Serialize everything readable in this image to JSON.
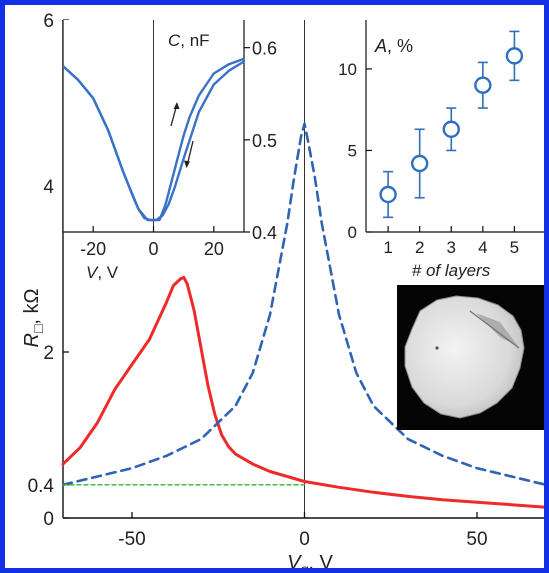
{
  "colors": {
    "frame": "#1430e6",
    "red_curve": "#ee2a2a",
    "blue_curve": "#2f63b6",
    "green_line": "#34b234",
    "inset_blue": "#3a73c6",
    "marker": "#2f6fc0"
  },
  "chart_data": [
    {
      "id": "main",
      "type": "line",
      "xlabel": "V_g, V",
      "xlabel_main": "V",
      "xlabel_sub": "g",
      "xlabel_unit": ", V",
      "ylabel": "R□, kΩ",
      "ylabel_main": "R",
      "ylabel_sub": "□",
      "ylabel_unit": ", kΩ",
      "xlim": [
        -70,
        70
      ],
      "ylim": [
        0,
        6
      ],
      "x_ticks": [
        -50,
        0,
        50
      ],
      "x_tick_labels": [
        "-50",
        "0",
        "50"
      ],
      "y_ticks": [
        0,
        0.4,
        2,
        4,
        6
      ],
      "y_tick_labels": [
        "0",
        "0.4",
        "2",
        "4",
        "6"
      ],
      "vline_x": 0,
      "series": [
        {
          "key": "red",
          "style": "solid",
          "x": [
            -70,
            -65,
            -60,
            -55,
            -50,
            -45,
            -40,
            -38,
            -36,
            -35,
            -34,
            -32,
            -30,
            -28,
            -26,
            -24,
            -22,
            -20,
            -15,
            -10,
            -5,
            0,
            10,
            20,
            30,
            40,
            50,
            60,
            70
          ],
          "y": [
            0.65,
            0.85,
            1.15,
            1.55,
            1.85,
            2.15,
            2.6,
            2.8,
            2.88,
            2.9,
            2.82,
            2.5,
            2.05,
            1.6,
            1.25,
            1.0,
            0.86,
            0.77,
            0.65,
            0.56,
            0.5,
            0.44,
            0.37,
            0.31,
            0.26,
            0.22,
            0.19,
            0.16,
            0.13
          ]
        },
        {
          "key": "blue",
          "style": "dashed",
          "x": [
            -70,
            -60,
            -50,
            -40,
            -30,
            -20,
            -15,
            -10,
            -5,
            -3,
            -1,
            0,
            1,
            3,
            5,
            10,
            15,
            20,
            30,
            40,
            50,
            60,
            70
          ],
          "y": [
            0.4,
            0.5,
            0.6,
            0.75,
            0.95,
            1.35,
            1.75,
            2.45,
            3.55,
            4.1,
            4.6,
            4.75,
            4.55,
            4.1,
            3.55,
            2.45,
            1.75,
            1.35,
            0.95,
            0.75,
            0.6,
            0.5,
            0.4
          ]
        },
        {
          "key": "green",
          "style": "dashed",
          "x": [
            -70,
            0
          ],
          "y": [
            0.4,
            0.4
          ]
        }
      ]
    },
    {
      "id": "inset_cv",
      "type": "line",
      "ylabel": "C, nF",
      "ylabel_main": "C",
      "ylabel_unit": ", nF",
      "xlabel": "V, V",
      "xlabel_main": "V",
      "xlabel_unit": ", V",
      "xlim": [
        -30,
        30
      ],
      "ylim": [
        0.4,
        0.63
      ],
      "x_ticks": [
        -20,
        0,
        20
      ],
      "x_tick_labels": [
        "-20",
        "0",
        "20"
      ],
      "y_ticks": [
        0.4,
        0.5,
        0.6
      ],
      "y_tick_labels": [
        "0.4",
        "0.5",
        "0.6"
      ],
      "series": [
        {
          "key": "sweep_down",
          "x": [
            -30,
            -25,
            -20,
            -15,
            -10,
            -7,
            -5,
            -3,
            -1,
            0,
            1,
            3,
            5,
            7,
            10,
            15,
            20,
            25,
            30
          ],
          "y": [
            0.58,
            0.565,
            0.545,
            0.51,
            0.465,
            0.44,
            0.425,
            0.415,
            0.413,
            0.413,
            0.413,
            0.418,
            0.43,
            0.448,
            0.48,
            0.53,
            0.56,
            0.575,
            0.585
          ]
        },
        {
          "key": "sweep_up",
          "x": [
            -30,
            -25,
            -20,
            -15,
            -10,
            -5,
            -2,
            0,
            2,
            4,
            6,
            8,
            10,
            12,
            15,
            20,
            25,
            30
          ],
          "y": [
            0.58,
            0.565,
            0.545,
            0.51,
            0.465,
            0.425,
            0.413,
            0.413,
            0.413,
            0.43,
            0.455,
            0.48,
            0.505,
            0.525,
            0.548,
            0.572,
            0.582,
            0.588
          ]
        }
      ]
    },
    {
      "id": "inset_absorption",
      "type": "scatter",
      "ylabel": "A, %",
      "ylabel_main": "A",
      "ylabel_unit": ", %",
      "xlabel": "# of layers",
      "xlim": [
        0.3,
        6
      ],
      "ylim": [
        0,
        13
      ],
      "x_ticks": [
        1,
        2,
        3,
        4,
        5
      ],
      "x_tick_labels": [
        "1",
        "2",
        "3",
        "4",
        "5"
      ],
      "y_ticks": [
        0,
        5,
        10
      ],
      "y_tick_labels": [
        "0",
        "5",
        "10"
      ],
      "x": [
        1,
        2,
        3,
        4,
        5
      ],
      "y": [
        2.3,
        4.2,
        6.3,
        9.0,
        10.8
      ],
      "err": [
        1.4,
        2.1,
        1.3,
        1.4,
        1.5
      ]
    }
  ]
}
